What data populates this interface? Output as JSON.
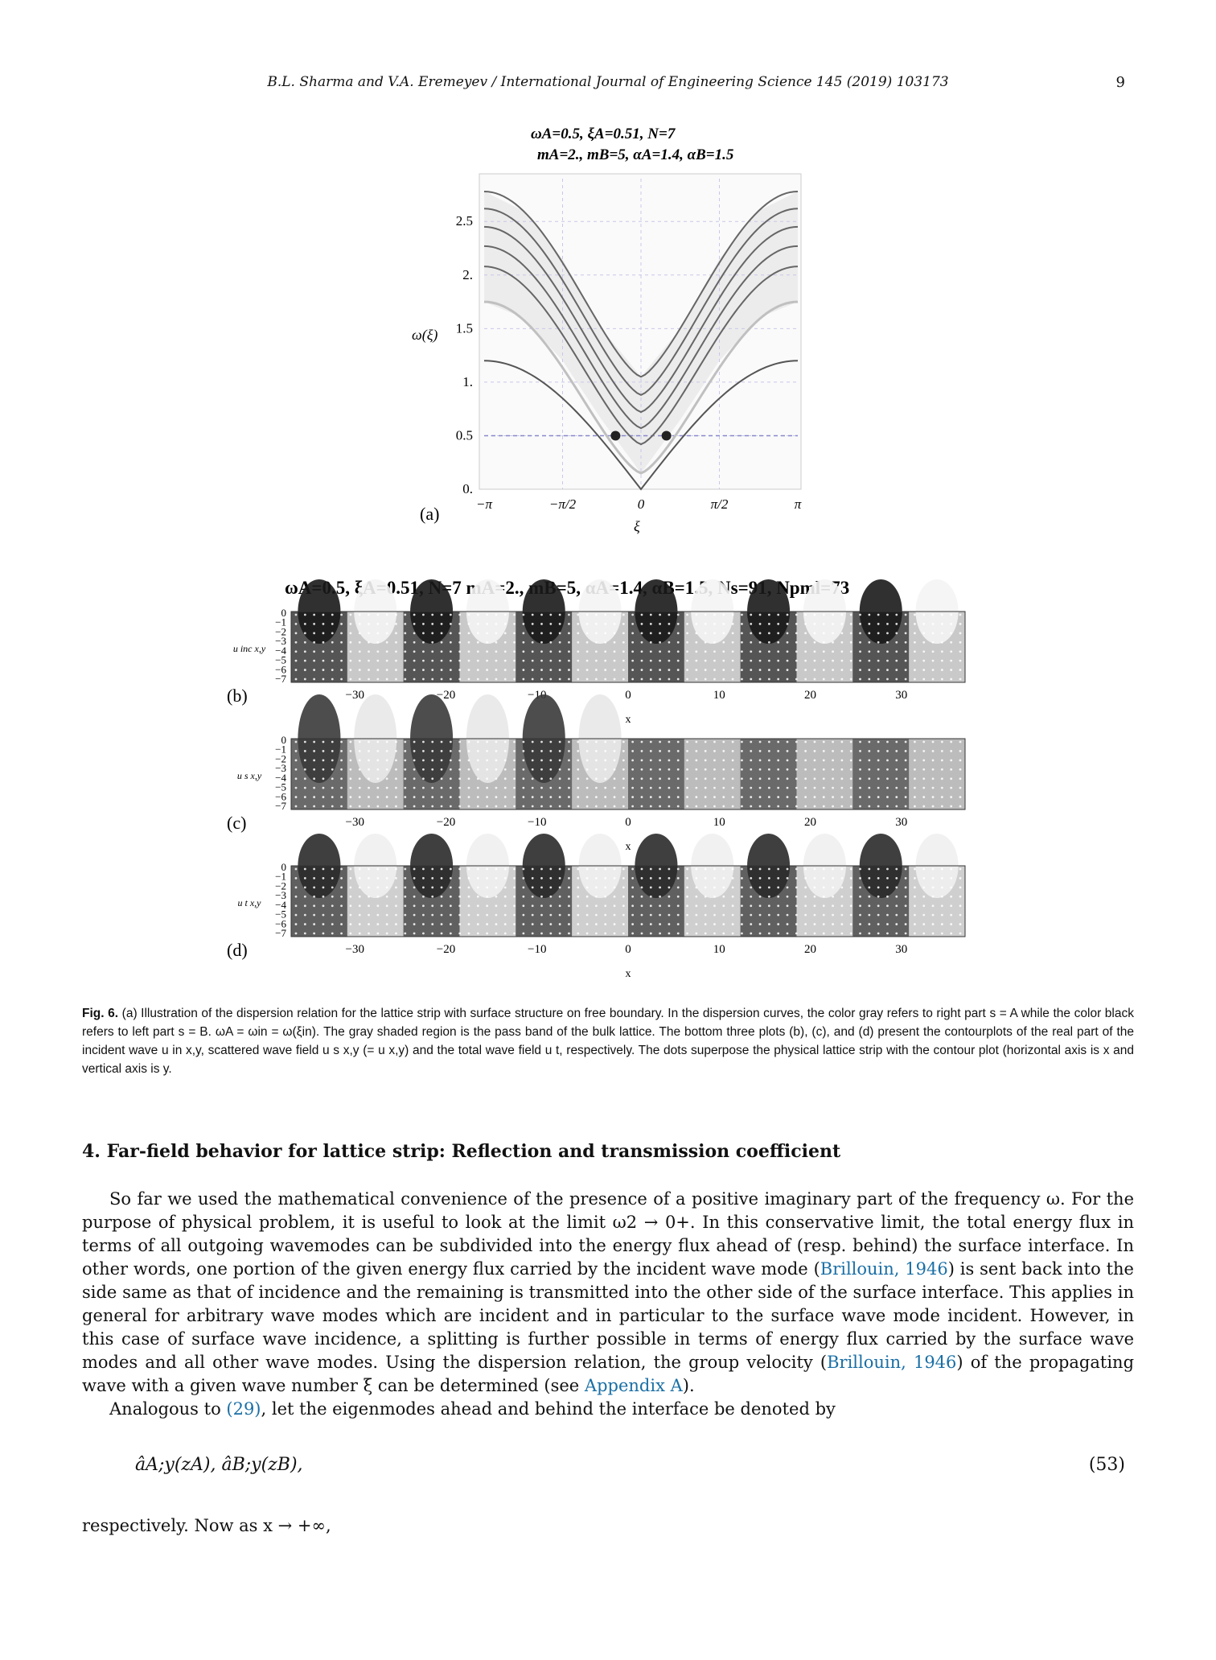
{
  "header": {
    "running_title": "B.L. Sharma and V.A. Eremeyev / International Journal of Engineering Science 145 (2019) 103173",
    "page_number": "9"
  },
  "figure": {
    "panel_a": {
      "title_line1": "ωA=0.5, ξA=0.51, N=7",
      "title_line2": "mA=2., mB=5, αA=1.4, αB=1.5",
      "ylabel": "ω(ξ)",
      "xlabel": "ξ",
      "panel_label": "(a)",
      "yticks": [
        "0.",
        "0.5",
        "1.",
        "1.5",
        "2.",
        "2.5"
      ],
      "xticks": [
        "−π",
        "−π/2",
        "0",
        "π/2",
        "π"
      ]
    },
    "strip_title": "ωA=0.5, ξA=0.51, N=7 mA=2., mB=5, αA=1.4, αB=1.5, Ns=91, Npml=73",
    "strips": [
      {
        "label": "(b)",
        "ylabel": "u inc x,y",
        "xlabel": "x"
      },
      {
        "label": "(c)",
        "ylabel": "u s x,y",
        "xlabel": "x"
      },
      {
        "label": "(d)",
        "ylabel": "u t x,y",
        "xlabel": "x"
      }
    ],
    "strip_yticks": [
      "0",
      "−1",
      "−2",
      "−3",
      "−4",
      "−5",
      "−6",
      "−7"
    ],
    "strip_xticks": [
      "−30",
      "−20",
      "−10",
      "0",
      "10",
      "20",
      "30"
    ]
  },
  "chart_data": {
    "type": "line",
    "title": "ωA=0.5, ξA=0.51, N=7 mA=2., mB=5, αA=1.4, αB=1.5",
    "xlabel": "ξ",
    "ylabel": "ω(ξ)",
    "xlim": [
      -3.1416,
      3.1416
    ],
    "ylim": [
      0,
      2.9
    ],
    "x": [
      -3.14,
      -2.36,
      -1.57,
      -0.79,
      0,
      0.79,
      1.57,
      2.36,
      3.14
    ],
    "series": [
      {
        "values": [
          2.78,
          2.6,
          2.15,
          1.5,
          1.05,
          1.5,
          2.15,
          2.6,
          2.78
        ]
      },
      {
        "values": [
          2.62,
          2.45,
          2.0,
          1.35,
          0.88,
          1.35,
          2.0,
          2.45,
          2.62
        ]
      },
      {
        "values": [
          2.45,
          2.28,
          1.85,
          1.2,
          0.72,
          1.2,
          1.85,
          2.28,
          2.45
        ]
      },
      {
        "values": [
          2.27,
          2.1,
          1.68,
          1.05,
          0.57,
          1.05,
          1.68,
          2.1,
          2.27
        ]
      },
      {
        "values": [
          2.08,
          1.92,
          1.5,
          0.9,
          0.42,
          0.9,
          1.5,
          1.92,
          2.08
        ]
      },
      {
        "values": [
          1.75,
          1.6,
          1.2,
          0.65,
          0.15,
          0.65,
          1.2,
          1.6,
          1.75
        ]
      },
      {
        "values": [
          1.2,
          1.08,
          0.75,
          0.42,
          0.0,
          0.42,
          0.75,
          1.08,
          1.2
        ]
      }
    ],
    "reference_line": 0.5,
    "marked_points": [
      [
        -0.51,
        0.5
      ],
      [
        0.51,
        0.5
      ]
    ],
    "grid": true
  },
  "caption": {
    "label": "Fig. 6.",
    "text": "(a) Illustration of the dispersion relation for the lattice strip with surface structure on free boundary. In the dispersion curves, the color gray refers to right part s = A while the color black refers to left part s = B. ωA = ωin = ω(ξin). The gray shaded region is the pass band of the bulk lattice. The bottom three plots (b), (c), and (d) present the contourplots of the real part of the incident wave u in x,y, scattered wave field u s x,y (= u x,y) and the total wave field u t, respectively. The dots superpose the physical lattice strip with the contour plot (horizontal axis is x and vertical axis is y."
  },
  "section": {
    "title": "4. Far-field behavior for lattice strip: Reflection and transmission coefficient"
  },
  "body": {
    "p1_a": "So far we used the mathematical convenience of the presence of a positive imaginary part of the frequency ω. For the purpose of physical problem, it is useful to look at the limit ω2 → 0+. In this conservative limit, the total energy flux in terms of all outgoing wavemodes can be subdivided into the energy flux ahead of (resp. behind) the surface interface. In other words, one portion of the given energy flux carried by the incident wave mode (",
    "p1_link1": "Brillouin, 1946",
    "p1_b": ") is sent back into the side same as that of incidence and the remaining is transmitted into the other side of the surface interface. This applies in general for arbitrary wave modes which are incident and in particular to the surface wave mode incident. However, in this case of surface wave incidence, a splitting is further possible in terms of energy flux carried by the surface wave modes and all other wave modes. Using the dispersion relation, the group velocity (",
    "p1_link2": "Brillouin, 1946",
    "p1_c": ") of the propagating wave with a given wave number ξ can be determined (see ",
    "p1_link3": "Appendix A",
    "p1_d": ").",
    "p2_a": "Analogous to ",
    "p2_link": "(29)",
    "p2_b": ", let the eigenmodes ahead and behind the interface be denoted by",
    "equation": "âA;y(zA),    âB;y(zB),",
    "equation_number": "(53)",
    "tail": "respectively. Now as x → +∞,"
  }
}
